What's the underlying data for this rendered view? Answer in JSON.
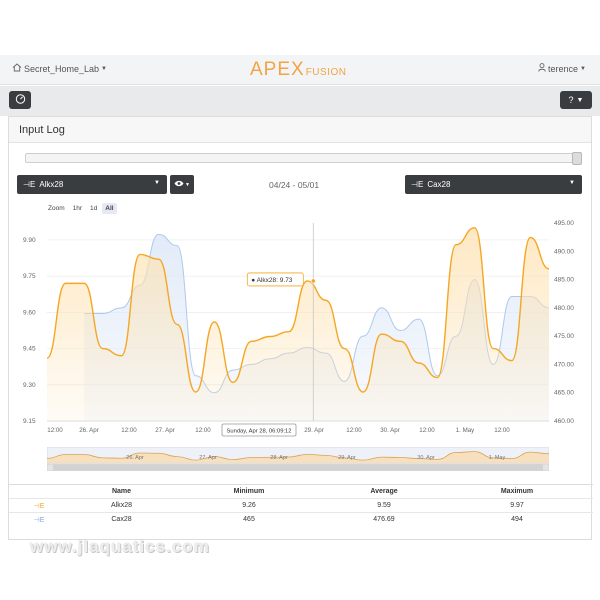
{
  "nav": {
    "location": "Secret_Home_Lab",
    "logo_main": "APEX",
    "logo_sub": "FUSION",
    "user": "terence"
  },
  "panel": {
    "title": "Input Log"
  },
  "controls": {
    "left_select": "Alkx28",
    "right_select": "Cax28",
    "date_range": "04/24 - 05/01"
  },
  "zoom": {
    "label": "Zoom",
    "options": [
      "1hr",
      "1d",
      "All"
    ],
    "active": "All"
  },
  "tooltip": {
    "series": "Alkx28",
    "value": "9.73"
  },
  "crosshair_label": "Sunday, Apr 28, 06:09:12",
  "colors": {
    "alk": "#f5a623",
    "alk_fill": "#fde3b5",
    "cax": "#aec9ee",
    "cax_fill": "#dfe9f8",
    "dark": "#3a3d40"
  },
  "chart_data": {
    "type": "area",
    "x_ticks": [
      "12:00",
      "26. Apr",
      "12:00",
      "27. Apr",
      "12:00",
      "Sunday, Apr 28, 06:09:12",
      "29. Apr",
      "12:00",
      "30. Apr",
      "12:00",
      "1. May",
      "12:00"
    ],
    "y_left": {
      "ticks": [
        "9.15",
        "9.30",
        "9.45",
        "9.60",
        "9.75",
        "9.90"
      ],
      "range": [
        9.15,
        9.97
      ]
    },
    "y_right": {
      "ticks": [
        "460.00",
        "465.00",
        "470.00",
        "475.00",
        "480.00",
        "485.00",
        "490.00",
        "495.00"
      ],
      "range": [
        460,
        495
      ]
    },
    "series": [
      {
        "name": "Alkx28",
        "axis": "left",
        "points": [
          9.41,
          9.72,
          9.72,
          9.45,
          9.42,
          9.84,
          9.82,
          9.55,
          9.27,
          9.56,
          9.31,
          9.48,
          9.5,
          9.52,
          9.73,
          9.65,
          9.45,
          9.27,
          9.51,
          9.48,
          9.39,
          9.33,
          9.88,
          9.95,
          9.45,
          9.4,
          9.91,
          9.78
        ]
      },
      {
        "name": "Cax28",
        "axis": "right",
        "points": [
          null,
          null,
          479,
          479,
          480,
          484,
          493,
          491,
          468,
          465,
          469,
          470,
          471,
          472,
          473,
          472,
          467,
          475,
          480,
          476,
          478,
          468,
          475,
          485,
          470,
          482,
          482,
          480
        ]
      }
    ]
  },
  "navigator_labels": [
    "26. Apr",
    "27. Apr",
    "28. Apr",
    "29. Apr",
    "30. Apr",
    "1. May"
  ],
  "table": {
    "headers": {
      "name": "Name",
      "min": "Minimum",
      "avg": "Average",
      "max": "Maximum"
    },
    "rows": [
      {
        "name": "Alkx28",
        "min": "9.26",
        "avg": "9.59",
        "max": "9.97"
      },
      {
        "name": "Cax28",
        "min": "465",
        "avg": "476.69",
        "max": "494"
      }
    ]
  },
  "watermark": "www.jlaquatics.com"
}
